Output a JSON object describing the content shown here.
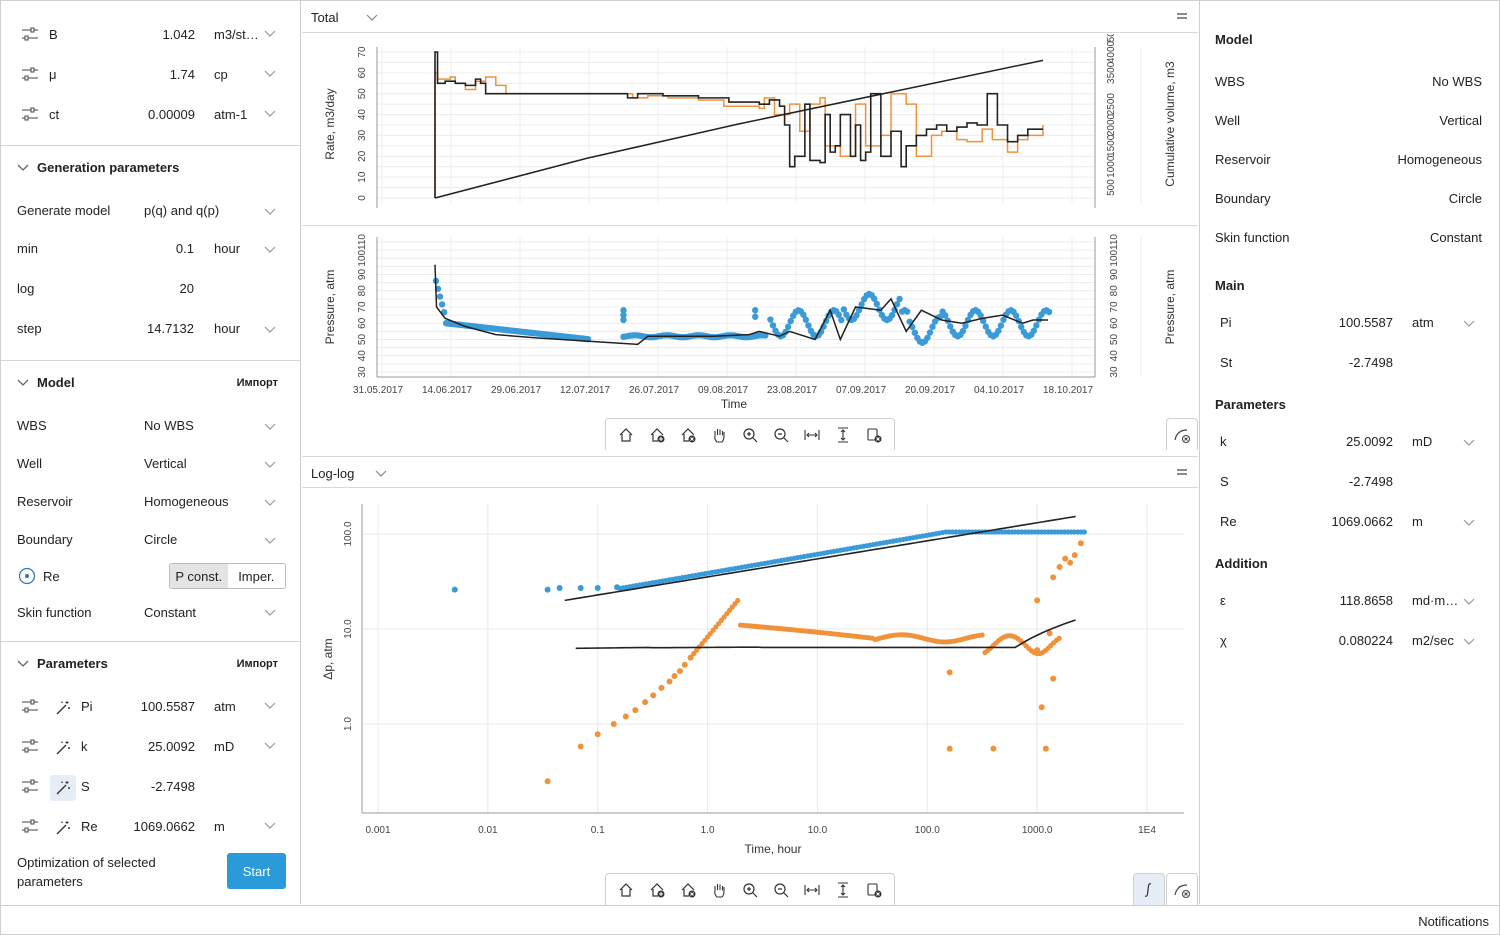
{
  "left": {
    "fluid": [
      {
        "name": "B",
        "value": "1.042",
        "unit": "m3/st…"
      },
      {
        "name": "μ",
        "value": "1.74",
        "unit": "cp"
      },
      {
        "name": "ct",
        "value": "0.00009",
        "unit": "atm-1"
      }
    ],
    "generation": {
      "title": "Generation parameters",
      "rows": [
        {
          "label": "Generate model",
          "value": "p(q) and q(p)",
          "unit": ""
        },
        {
          "label": "min",
          "value": "0.1",
          "unit": "hour"
        },
        {
          "label": "log",
          "value": "20",
          "unit": ""
        },
        {
          "label": "step",
          "value": "14.7132",
          "unit": "hour"
        }
      ]
    },
    "model": {
      "title": "Model",
      "import_label": "Импорт",
      "rows": [
        {
          "label": "WBS",
          "value": "No WBS"
        },
        {
          "label": "Well",
          "value": "Vertical"
        },
        {
          "label": "Reservoir",
          "value": "Homogeneous"
        },
        {
          "label": "Boundary",
          "value": "Circle"
        }
      ],
      "re_label": "Re",
      "re_toggle": [
        "P const.",
        "Imper."
      ],
      "skin_label": "Skin function",
      "skin_value": "Constant"
    },
    "parameters": {
      "title": "Parameters",
      "import_label": "Импорт",
      "rows": [
        {
          "name": "Pi",
          "value": "100.5587",
          "unit": "atm",
          "wand_active": false
        },
        {
          "name": "k",
          "value": "25.0092",
          "unit": "mD",
          "wand_active": false
        },
        {
          "name": "S",
          "value": "-2.7498",
          "unit": "",
          "wand_active": true
        },
        {
          "name": "Re",
          "value": "1069.0662",
          "unit": "m",
          "wand_active": false
        }
      ],
      "optimization_label": "Optimization of selected parameters",
      "start_label": "Start"
    }
  },
  "center": {
    "total_title": "Total",
    "loglog_title": "Log-log"
  },
  "right": {
    "model_title": "Model",
    "model_rows": [
      {
        "label": "WBS",
        "value": "No WBS"
      },
      {
        "label": "Well",
        "value": "Vertical"
      },
      {
        "label": "Reservoir",
        "value": "Homogeneous"
      },
      {
        "label": "Boundary",
        "value": "Circle"
      },
      {
        "label": "Skin function",
        "value": "Constant"
      }
    ],
    "main_title": "Main",
    "main_rows": [
      {
        "label": "Pi",
        "value": "100.5587",
        "unit": "atm"
      },
      {
        "label": "St",
        "value": "-2.7498",
        "unit": ""
      }
    ],
    "params_title": "Parameters",
    "params_rows": [
      {
        "label": "k",
        "value": "25.0092",
        "unit": "mD"
      },
      {
        "label": "S",
        "value": "-2.7498",
        "unit": ""
      },
      {
        "label": "Re",
        "value": "1069.0662",
        "unit": "m"
      }
    ],
    "addition_title": "Addition",
    "addition_rows": [
      {
        "label": "ε",
        "value": "118.8658",
        "unit": "md·m…"
      },
      {
        "label": "χ",
        "value": "0.080224",
        "unit": "m2/sec"
      }
    ]
  },
  "status": {
    "notifications": "Notifications"
  },
  "colors": {
    "accent": "#2b9ad9",
    "orange": "#f0923a",
    "blue": "#3a9bd8",
    "black": "#222222"
  },
  "chart_data": [
    {
      "type": "line",
      "name": "rate",
      "ylabel": "Rate, m3/day",
      "y2label": "Cumulative volume, m3",
      "ylim": [
        0,
        70
      ],
      "yticks": [
        "0",
        "10",
        "20",
        "30",
        "40",
        "50",
        "60",
        "70"
      ],
      "y2ticks": [
        "500",
        "1000",
        "1500",
        "2000",
        "2500",
        "3500",
        "4000",
        "5000"
      ],
      "series": [
        {
          "name": "",
          "color": "#f0923a",
          "x_days": [
            0,
            0.5,
            3,
            4,
            6,
            8,
            10,
            12,
            14,
            38,
            39,
            42,
            46,
            50,
            52,
            57,
            64,
            65,
            67,
            70,
            72,
            74,
            76,
            77,
            80,
            83,
            85,
            88,
            90,
            93,
            95,
            98,
            100,
            103,
            105,
            108,
            110,
            113,
            115,
            117,
            120
          ],
          "values": [
            60,
            57,
            58,
            55,
            52,
            56,
            58,
            54,
            50,
            50,
            48,
            49,
            48,
            48,
            47,
            44,
            43,
            48,
            40,
            45,
            32,
            45,
            48,
            25,
            20,
            45,
            25,
            30,
            50,
            45,
            20,
            30,
            32,
            28,
            27,
            33,
            28,
            22,
            28,
            30,
            35
          ]
        },
        {
          "name": "",
          "color": "#222222",
          "x_days": [
            0,
            0.5,
            2,
            4,
            6,
            8,
            9,
            10,
            12,
            38,
            40,
            45,
            52,
            58,
            62,
            64,
            66,
            67,
            68,
            69,
            70,
            71,
            73,
            74,
            76,
            77,
            78,
            79,
            80,
            82,
            83,
            84,
            85,
            86,
            88,
            90,
            92,
            93,
            95,
            97,
            99,
            101,
            103,
            105,
            107,
            109,
            111,
            113,
            115,
            117,
            120
          ],
          "values": [
            70,
            55,
            56,
            55,
            54,
            57,
            55,
            50,
            50,
            48,
            50,
            49,
            48,
            46,
            46,
            45,
            47,
            47,
            44,
            35,
            15,
            20,
            45,
            18,
            17,
            40,
            22,
            25,
            40,
            20,
            35,
            18,
            22,
            50,
            20,
            32,
            15,
            25,
            30,
            33,
            35,
            32,
            34,
            36,
            35,
            50,
            35,
            27,
            30,
            33,
            33
          ]
        },
        {
          "name": "",
          "color": "#222222",
          "kind": "cumulative",
          "x_days": [
            0,
            30,
            60,
            90,
            120
          ],
          "values": [
            0,
            1500,
            2800,
            4000,
            5200
          ]
        }
      ]
    },
    {
      "type": "scatter",
      "name": "pressure",
      "xlabel": "Time",
      "ylabel": "Pressure, atm",
      "y2label": "Pressure, atm",
      "ylim": [
        30,
        110
      ],
      "yticks": [
        "30",
        "40",
        "50",
        "60",
        "70",
        "80",
        "90",
        "100",
        "110"
      ],
      "xticks": [
        "31.05.2017",
        "14.06.2017",
        "29.06.2017",
        "12.07.2017",
        "26.07.2017",
        "09.08.2017",
        "23.08.2017",
        "07.09.2017",
        "20.09.2017",
        "04.10.2017",
        "18.10.2017"
      ]
    },
    {
      "type": "scatter",
      "name": "loglog",
      "xlabel": "Time, hour",
      "ylabel": "Δp, atm",
      "xticks": [
        "0.001",
        "0.01",
        "0.1",
        "1.0",
        "10.0",
        "100.0",
        "1000.0",
        "1E4"
      ],
      "yticks": [
        "1.0",
        "10.0",
        "100.0"
      ],
      "xlim": [
        0.001,
        10000
      ],
      "ylim": [
        0.2,
        130
      ]
    }
  ]
}
